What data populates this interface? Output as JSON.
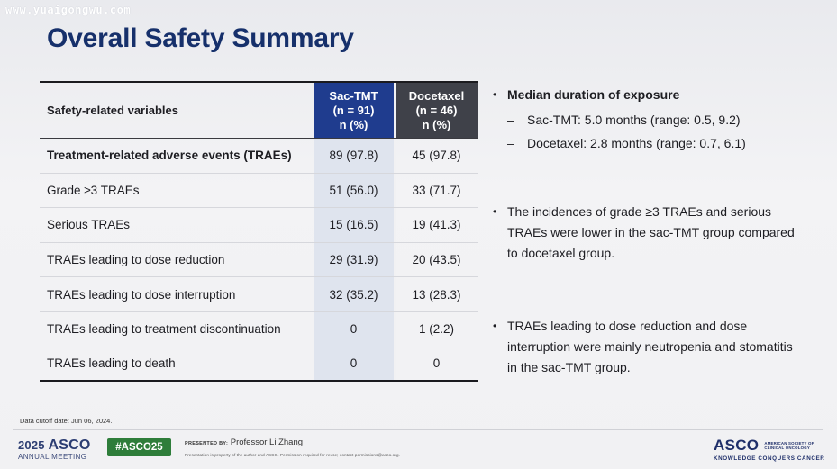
{
  "watermark": "www.yuaigongwu.com",
  "slide_title": "Overall Safety Summary",
  "table": {
    "header": {
      "variable_label": "Safety-related variables",
      "col1": {
        "name": "Sac-TMT",
        "n": "(n = 91)",
        "unit": "n (%)"
      },
      "col2": {
        "name": "Docetaxel",
        "n": "(n = 46)",
        "unit": "n (%)"
      }
    },
    "rows": [
      {
        "label": "Treatment-related adverse events (TRAEs)",
        "sac": "89 (97.8)",
        "doc": "45 (97.8)"
      },
      {
        "label": "Grade ≥3 TRAEs",
        "sac": "51 (56.0)",
        "doc": "33 (71.7)"
      },
      {
        "label": "Serious TRAEs",
        "sac": "15 (16.5)",
        "doc": "19 (41.3)"
      },
      {
        "label": "TRAEs leading to dose reduction",
        "sac": "29 (31.9)",
        "doc": "20 (43.5)"
      },
      {
        "label": "TRAEs leading to dose interruption",
        "sac": "32 (35.2)",
        "doc": "13 (28.3)"
      },
      {
        "label": "TRAEs leading to treatment discontinuation",
        "sac": "0",
        "doc": "1 (2.2)"
      },
      {
        "label": "TRAEs leading to death",
        "sac": "0",
        "doc": "0"
      }
    ]
  },
  "bullets": {
    "b1": {
      "text": "Median duration of exposure",
      "sub1": "Sac-TMT: 5.0 months (range: 0.5, 9.2)",
      "sub2": "Docetaxel: 2.8 months (range: 0.7, 6.1)"
    },
    "b2": {
      "line1": "The incidences of grade ≥3 TRAEs and serious",
      "line2": "TRAEs were lower in the sac-TMT group compared",
      "line3": "to docetaxel group."
    },
    "b3": {
      "line1": "TRAEs leading to dose reduction and dose",
      "line2": "interruption were mainly neutropenia and stomatitis",
      "line3": "in the sac-TMT group."
    }
  },
  "footer": {
    "cutoff": "Data cutoff date: Jun 06, 2024.",
    "meeting_year": "2025",
    "meeting_brand": "ASCO",
    "meeting_sub": "ANNUAL MEETING",
    "hashtag": "#ASCO25",
    "presented_by_label": "PRESENTED BY:",
    "presenter": "Professor Li Zhang",
    "permission_note": "Presentation is property of the author and ASCO. Permission required for reuse; contact permissions@asco.org.",
    "logo_word": "ASCO",
    "logo_society_1": "AMERICAN SOCIETY OF",
    "logo_society_2": "CLINICAL ONCOLOGY",
    "logo_tagline": "KNOWLEDGE CONQUERS CANCER"
  }
}
